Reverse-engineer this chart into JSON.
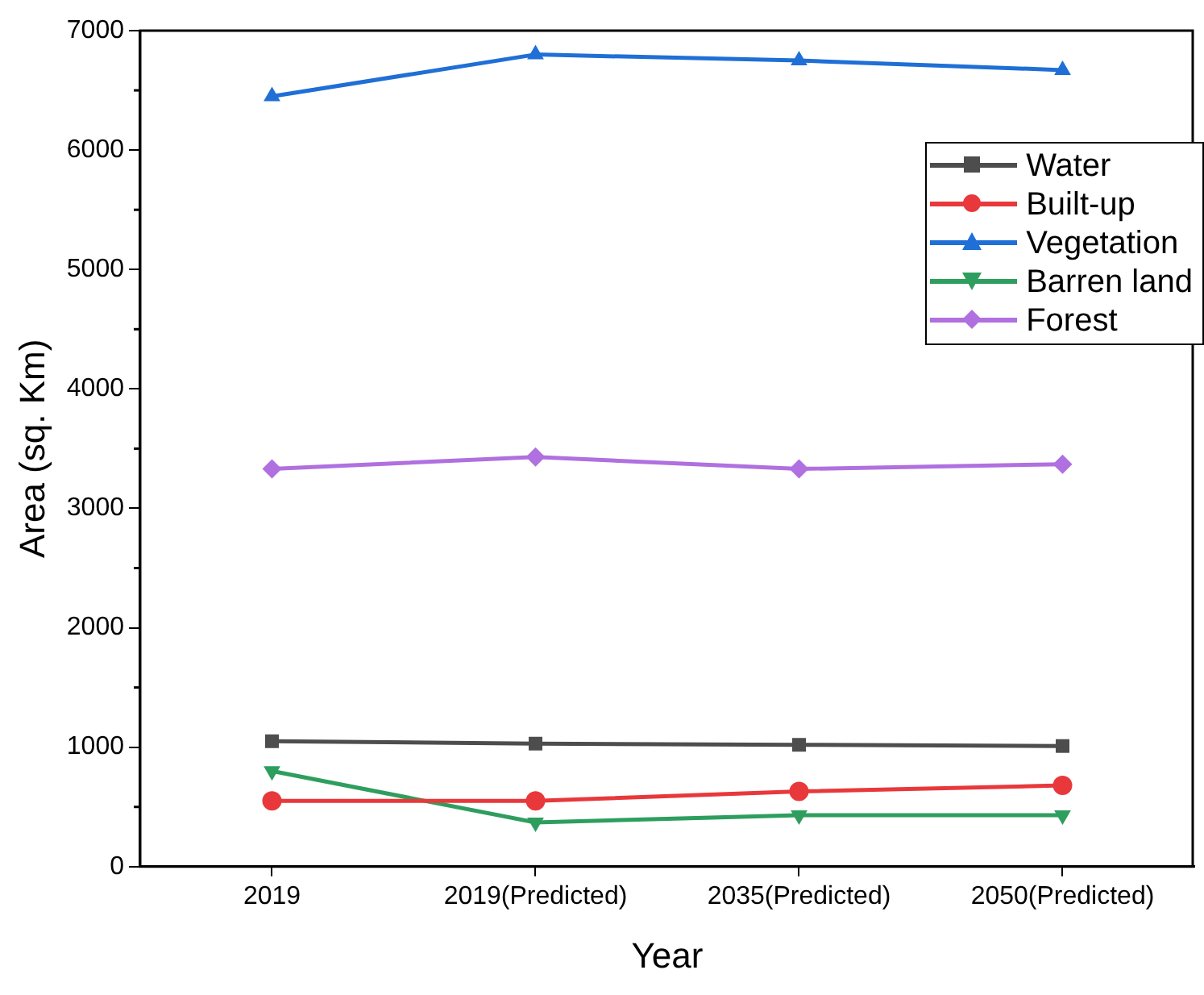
{
  "chart_data": {
    "type": "line",
    "xlabel": "Year",
    "ylabel": "Area (sq. Km)",
    "categories": [
      "2019",
      "2019(Predicted)",
      "2035(Predicted)",
      "2050(Predicted)"
    ],
    "series": [
      {
        "name": "Water",
        "color": "#4d4d4d",
        "marker": "square",
        "values": [
          1050,
          1030,
          1020,
          1010
        ]
      },
      {
        "name": "Built-up",
        "color": "#e8383b",
        "marker": "circle",
        "values": [
          550,
          550,
          630,
          680
        ]
      },
      {
        "name": "Vegetation",
        "color": "#1f6fd6",
        "marker": "triangle",
        "values": [
          6450,
          6800,
          6750,
          6670
        ]
      },
      {
        "name": "Barren land",
        "color": "#2e9e5e",
        "marker": "triangle-down",
        "values": [
          800,
          370,
          430,
          430
        ]
      },
      {
        "name": "Forest",
        "color": "#b070e0",
        "marker": "diamond",
        "values": [
          3330,
          3430,
          3330,
          3370
        ]
      }
    ],
    "ylim": [
      0,
      7000
    ],
    "yticks": [
      0,
      1000,
      2000,
      3000,
      4000,
      5000,
      6000,
      7000
    ],
    "grid": false,
    "legend": "top right",
    "line_style": "solid"
  }
}
